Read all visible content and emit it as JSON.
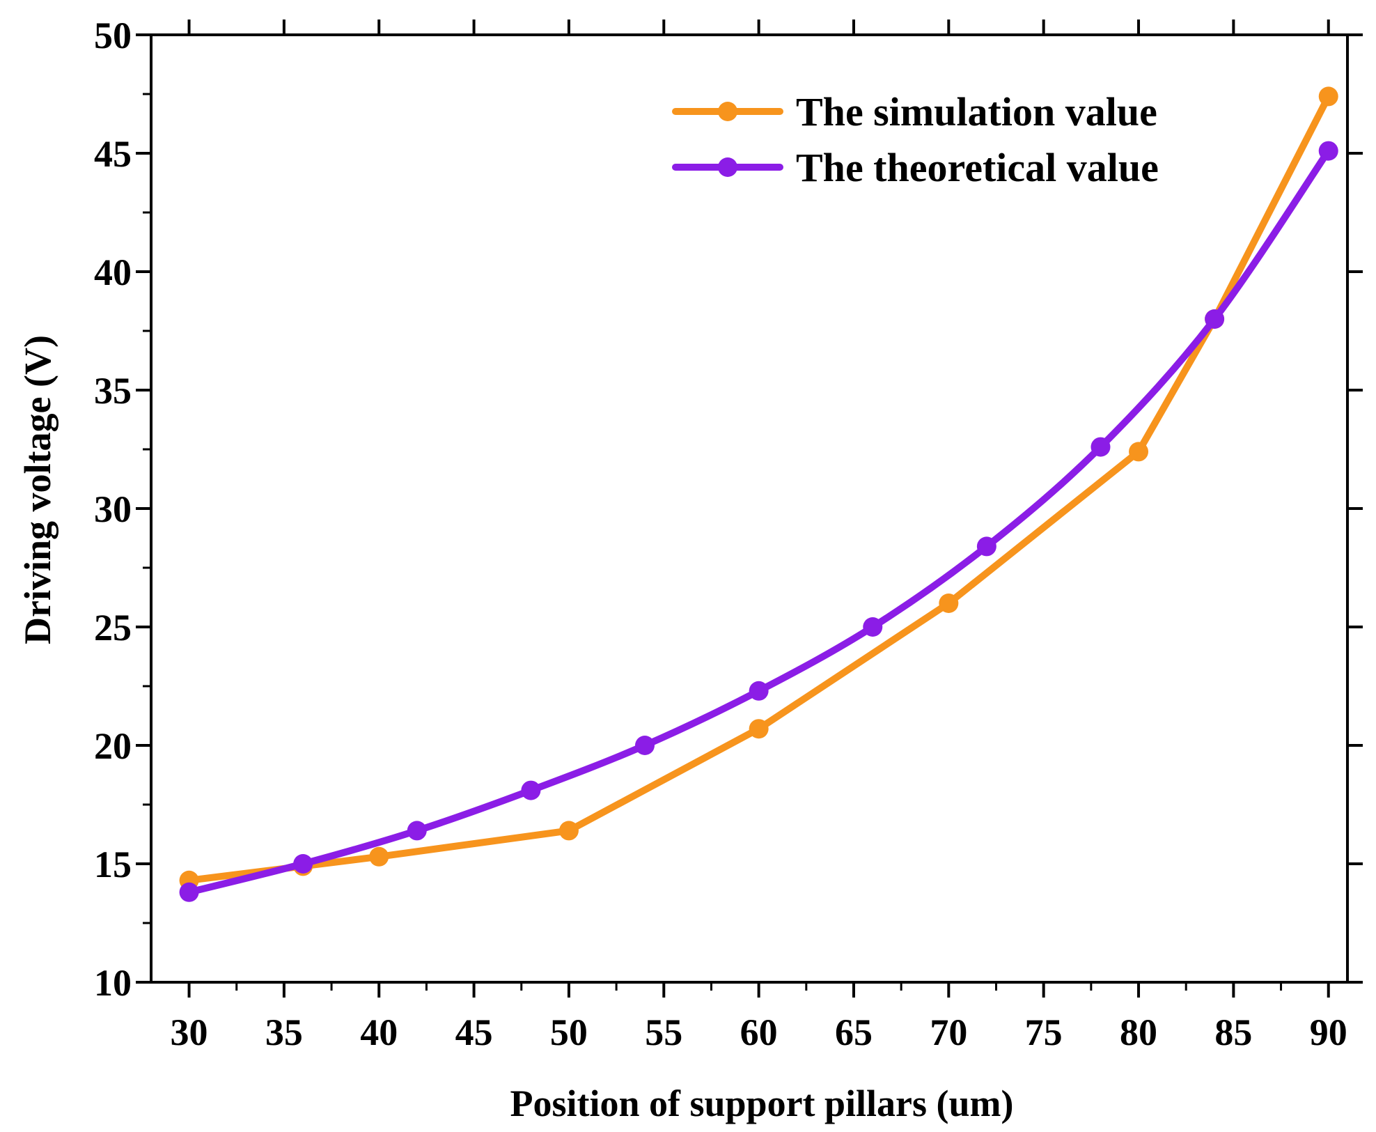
{
  "chart_data": {
    "type": "line",
    "xlabel": "Position of support pillars (um)",
    "ylabel": "Driving voltage (V)",
    "xlim": [
      28,
      91
    ],
    "ylim": [
      10,
      50
    ],
    "xticks": [
      30,
      35,
      40,
      45,
      50,
      55,
      60,
      65,
      70,
      75,
      80,
      85,
      90
    ],
    "yticks": [
      10,
      15,
      20,
      25,
      30,
      35,
      40,
      45,
      50
    ],
    "grid": false,
    "legend_position": "top-right",
    "series": [
      {
        "name": "The simulation value",
        "color": "#F7941D",
        "smooth": false,
        "x": [
          30,
          36,
          40,
          50,
          60,
          70,
          80,
          84,
          90
        ],
        "y": [
          14.3,
          14.9,
          15.3,
          16.4,
          20.7,
          26.0,
          32.4,
          38.0,
          47.4
        ]
      },
      {
        "name": "The theoretical value",
        "color": "#8B1DE6",
        "smooth": true,
        "x": [
          30,
          36,
          42,
          48,
          54,
          60,
          66,
          72,
          78,
          84,
          90
        ],
        "y": [
          13.8,
          15.0,
          16.4,
          18.1,
          20.0,
          22.3,
          25.0,
          28.4,
          32.6,
          38.0,
          45.1
        ]
      }
    ]
  }
}
